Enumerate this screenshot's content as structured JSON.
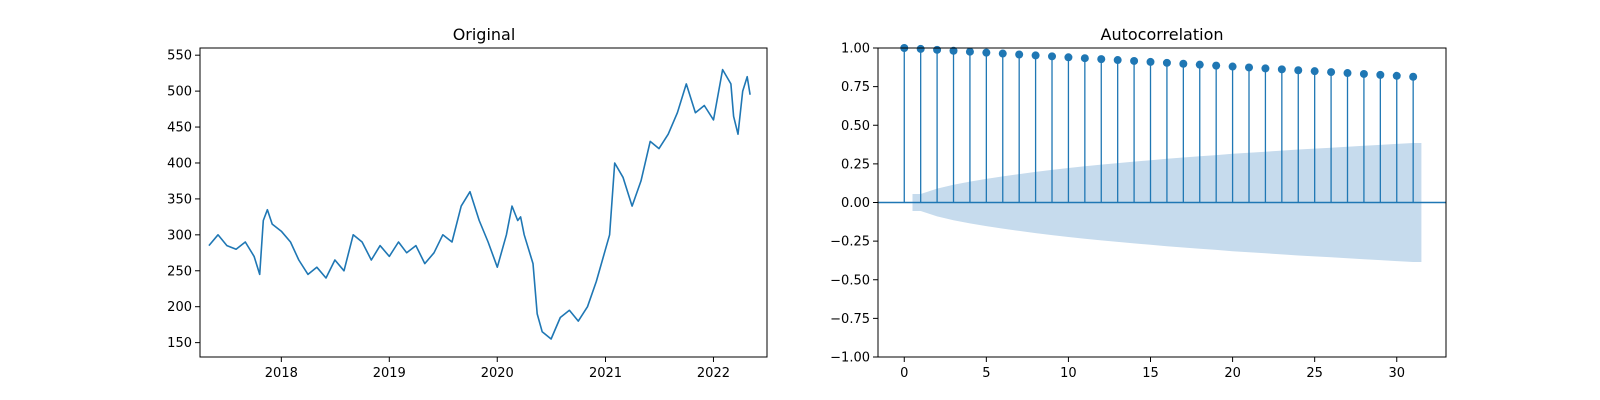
{
  "chart_data": [
    {
      "type": "line",
      "title": "Original",
      "xlabel": "",
      "ylabel": "",
      "x_ticks": [
        "2018",
        "2019",
        "2020",
        "2021",
        "2022"
      ],
      "y_ticks": [
        "150",
        "200",
        "250",
        "300",
        "350",
        "400",
        "450",
        "500",
        "550"
      ],
      "xlim": [
        "2017-04-01",
        "2022-07-01"
      ],
      "ylim": [
        130,
        560
      ],
      "color": "#1f77b4",
      "series": [
        {
          "x": [
            "2017-05-01",
            "2017-06-01",
            "2017-07-01",
            "2017-08-01",
            "2017-09-01",
            "2017-10-01",
            "2017-10-20",
            "2017-11-01",
            "2017-11-15",
            "2017-12-01",
            "2018-01-01",
            "2018-02-01",
            "2018-03-01",
            "2018-04-01",
            "2018-05-01",
            "2018-06-01",
            "2018-07-01",
            "2018-08-01",
            "2018-09-01",
            "2018-10-01",
            "2018-11-01",
            "2018-12-01",
            "2019-01-01",
            "2019-02-01",
            "2019-03-01",
            "2019-04-01",
            "2019-05-01",
            "2019-06-01",
            "2019-07-01",
            "2019-08-01",
            "2019-09-01",
            "2019-10-01",
            "2019-11-01",
            "2019-12-01",
            "2020-01-01",
            "2020-02-01",
            "2020-02-20",
            "2020-03-10",
            "2020-03-20",
            "2020-04-01",
            "2020-05-01",
            "2020-05-15",
            "2020-06-01",
            "2020-07-01",
            "2020-08-01",
            "2020-09-01",
            "2020-10-01",
            "2020-11-01",
            "2020-12-01",
            "2021-01-01",
            "2021-01-15",
            "2021-02-01",
            "2021-03-01",
            "2021-04-01",
            "2021-05-01",
            "2021-06-01",
            "2021-07-01",
            "2021-08-01",
            "2021-09-01",
            "2021-10-01",
            "2021-11-01",
            "2021-12-01",
            "2022-01-01",
            "2022-02-01",
            "2022-03-01",
            "2022-03-10",
            "2022-03-25",
            "2022-04-10",
            "2022-04-25",
            "2022-05-05"
          ],
          "y": [
            285,
            300,
            285,
            280,
            290,
            270,
            245,
            320,
            335,
            315,
            305,
            290,
            265,
            245,
            255,
            240,
            265,
            250,
            300,
            290,
            265,
            285,
            270,
            290,
            275,
            285,
            260,
            275,
            300,
            290,
            340,
            360,
            320,
            290,
            255,
            300,
            340,
            320,
            325,
            300,
            260,
            190,
            165,
            155,
            185,
            195,
            180,
            200,
            235,
            280,
            300,
            400,
            380,
            340,
            375,
            430,
            420,
            440,
            470,
            510,
            470,
            480,
            460,
            530,
            510,
            465,
            440,
            500,
            520,
            495
          ]
        }
      ]
    },
    {
      "type": "bar",
      "title": "Autocorrelation",
      "xlabel": "",
      "ylabel": "",
      "x_ticks": [
        "0",
        "5",
        "10",
        "15",
        "20",
        "25",
        "30"
      ],
      "y_ticks": [
        "−1.00",
        "−0.75",
        "−0.50",
        "−0.25",
        "0.00",
        "0.25",
        "0.50",
        "0.75",
        "1.00"
      ],
      "xlim": [
        -1.6,
        33
      ],
      "ylim": [
        -1.0,
        1.0
      ],
      "lags": [
        0,
        1,
        2,
        3,
        4,
        5,
        6,
        7,
        8,
        9,
        10,
        11,
        12,
        13,
        14,
        15,
        16,
        17,
        18,
        19,
        20,
        21,
        22,
        23,
        24,
        25,
        26,
        27,
        28,
        29,
        30,
        31
      ],
      "values": [
        1.0,
        0.994,
        0.988,
        0.982,
        0.976,
        0.97,
        0.964,
        0.958,
        0.952,
        0.946,
        0.94,
        0.934,
        0.928,
        0.922,
        0.916,
        0.91,
        0.904,
        0.898,
        0.892,
        0.886,
        0.88,
        0.874,
        0.868,
        0.862,
        0.856,
        0.85,
        0.844,
        0.838,
        0.832,
        0.826,
        0.82,
        0.814
      ],
      "confidence_band": [
        0.0,
        0.055,
        0.09,
        0.115,
        0.135,
        0.153,
        0.169,
        0.184,
        0.198,
        0.211,
        0.223,
        0.234,
        0.245,
        0.255,
        0.265,
        0.274,
        0.283,
        0.291,
        0.299,
        0.307,
        0.315,
        0.322,
        0.329,
        0.336,
        0.343,
        0.349,
        0.355,
        0.361,
        0.367,
        0.373,
        0.379,
        0.385
      ],
      "color": "#1f77b4",
      "band_color": "#c6dbed"
    }
  ]
}
